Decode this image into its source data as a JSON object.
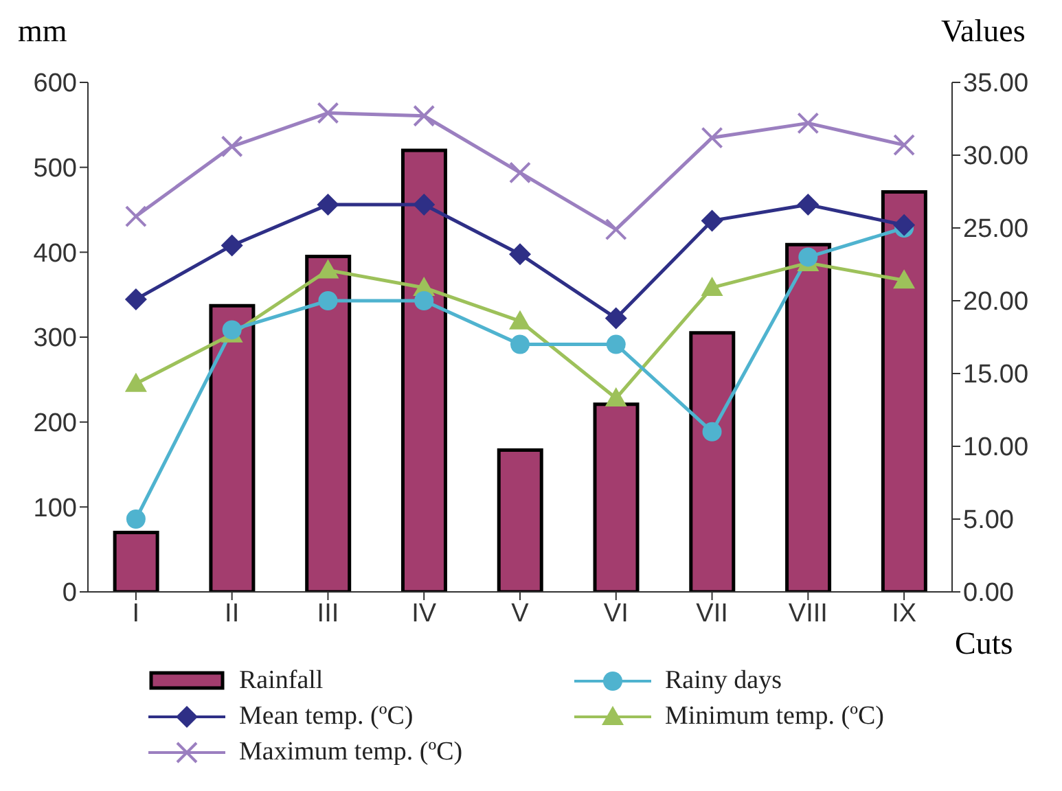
{
  "chart_data": {
    "type": "bar",
    "xlabel": "Cuts",
    "ylabel": "mm",
    "y2label": "Values",
    "categories": [
      "I",
      "II",
      "III",
      "IV",
      "V",
      "VI",
      "VII",
      "VIII",
      "IX"
    ],
    "series": [
      {
        "name": "Rainfall",
        "color": "#a33d6e",
        "values": [
          70,
          337,
          395,
          520,
          167,
          221,
          305,
          409,
          471
        ]
      },
      {
        "name": "Mean temp. (ºC)",
        "type": "line",
        "axis": "y2",
        "marker": "diamond",
        "color": "#2e2f86",
        "values": [
          20.1,
          23.8,
          26.6,
          26.6,
          23.2,
          18.8,
          25.5,
          26.6,
          25.2
        ]
      },
      {
        "name": "Maximum temp. (ºC)",
        "type": "line",
        "axis": "y2",
        "marker": "cross",
        "color": "#9b7fc0",
        "values": [
          25.8,
          30.6,
          32.9,
          32.7,
          28.8,
          24.9,
          31.2,
          32.2,
          30.7
        ]
      },
      {
        "name": "Rainy days",
        "type": "line",
        "axis": "y2",
        "marker": "circle",
        "color": "#4fb3cf",
        "values": [
          5,
          18,
          20,
          20,
          17,
          17,
          11,
          23,
          25
        ]
      },
      {
        "name": "Minimum temp. (ºC)",
        "type": "line",
        "axis": "y2",
        "marker": "triangle",
        "color": "#9dc15a",
        "values": [
          14.3,
          17.7,
          22.1,
          20.9,
          18.6,
          13.3,
          20.9,
          22.6,
          21.4
        ]
      }
    ],
    "ylim": [
      0,
      600
    ],
    "yticks": [
      0,
      100,
      200,
      300,
      400,
      500,
      600
    ],
    "y2lim": [
      0,
      35
    ],
    "y2ticks": [
      {
        "value": 0,
        "label": "0.00"
      },
      {
        "value": 5,
        "label": "5.00"
      },
      {
        "value": 10,
        "label": "10.00"
      },
      {
        "value": 15,
        "label": "15.00"
      },
      {
        "value": 20,
        "label": "20.00"
      },
      {
        "value": 25,
        "label": "25.00"
      },
      {
        "value": 30,
        "label": "30.00"
      },
      {
        "value": 35,
        "label": "35.00"
      }
    ],
    "grid": false,
    "legend": "bottom"
  }
}
